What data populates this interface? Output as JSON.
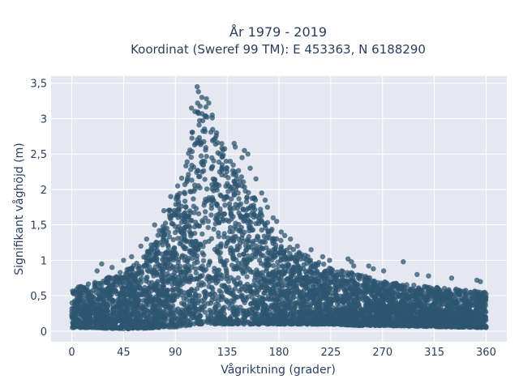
{
  "chart_data": {
    "type": "scatter",
    "title": "År 1979 - 2019",
    "subtitle": "Koordinat (Sweref 99 TM): E 453363, N 6188290",
    "xlabel": "Vågriktning (grader)",
    "ylabel": "Signifikant våghöjd (m)",
    "xlim": [
      -18,
      378
    ],
    "ylim": [
      -0.15,
      3.6
    ],
    "x_ticks": [
      0,
      45,
      90,
      135,
      180,
      225,
      270,
      315,
      360
    ],
    "x_tick_labels": [
      "0",
      "45",
      "90",
      "135",
      "180",
      "225",
      "270",
      "315",
      "360"
    ],
    "y_ticks": [
      0,
      0.5,
      1,
      1.5,
      2,
      2.5,
      3,
      3.5
    ],
    "y_tick_labels": [
      "0",
      "0,5",
      "1",
      "1,5",
      "2",
      "2,5",
      "3",
      "3,5"
    ],
    "grid": true,
    "legend": "none",
    "marker_color": "#2e5570",
    "plot_background": "#e5e8f0",
    "envelope": {
      "description_x": [
        0,
        10,
        20,
        30,
        45,
        60,
        75,
        90,
        100,
        110,
        120,
        135,
        150,
        165,
        180,
        200,
        225,
        250,
        270,
        300,
        330,
        360
      ],
      "upper": [
        0.6,
        0.65,
        0.7,
        0.75,
        0.85,
        1.0,
        1.4,
        1.9,
        2.4,
        3.3,
        3.1,
        2.5,
        2.2,
        1.7,
        1.3,
        1.1,
        0.9,
        0.8,
        0.7,
        0.65,
        0.6,
        0.55
      ],
      "lower": [
        0.05,
        0.05,
        0.05,
        0.04,
        0.03,
        0.04,
        0.05,
        0.06,
        0.08,
        0.1,
        0.1,
        0.1,
        0.1,
        0.1,
        0.1,
        0.1,
        0.1,
        0.08,
        0.08,
        0.07,
        0.06,
        0.05
      ]
    },
    "outliers": [
      {
        "x": 109,
        "y": 3.45
      },
      {
        "x": 110,
        "y": 3.38
      },
      {
        "x": 113,
        "y": 3.3
      },
      {
        "x": 117,
        "y": 3.28
      },
      {
        "x": 119,
        "y": 3.22
      },
      {
        "x": 104,
        "y": 3.15
      },
      {
        "x": 107,
        "y": 3.1
      },
      {
        "x": 122,
        "y": 3.05
      },
      {
        "x": 141,
        "y": 2.65
      },
      {
        "x": 142,
        "y": 2.6
      },
      {
        "x": 150,
        "y": 2.55
      },
      {
        "x": 153,
        "y": 2.5
      },
      {
        "x": 148,
        "y": 2.45
      },
      {
        "x": 155,
        "y": 2.3
      },
      {
        "x": 160,
        "y": 2.15
      },
      {
        "x": 165,
        "y": 1.95
      },
      {
        "x": 168,
        "y": 1.85
      },
      {
        "x": 170,
        "y": 1.75
      },
      {
        "x": 175,
        "y": 1.6
      },
      {
        "x": 178,
        "y": 1.55
      },
      {
        "x": 182,
        "y": 1.4
      },
      {
        "x": 185,
        "y": 1.35
      },
      {
        "x": 190,
        "y": 1.3
      },
      {
        "x": 196,
        "y": 1.2
      },
      {
        "x": 208,
        "y": 1.15
      },
      {
        "x": 218,
        "y": 1.05
      },
      {
        "x": 224,
        "y": 1.0
      },
      {
        "x": 240,
        "y": 1.02
      },
      {
        "x": 243,
        "y": 0.98
      },
      {
        "x": 245,
        "y": 0.92
      },
      {
        "x": 258,
        "y": 0.92
      },
      {
        "x": 262,
        "y": 0.88
      },
      {
        "x": 271,
        "y": 0.85
      },
      {
        "x": 288,
        "y": 0.98
      },
      {
        "x": 300,
        "y": 0.8
      },
      {
        "x": 310,
        "y": 0.78
      },
      {
        "x": 330,
        "y": 0.75
      },
      {
        "x": 352,
        "y": 0.72
      },
      {
        "x": 355,
        "y": 0.7
      },
      {
        "x": 22,
        "y": 0.85
      },
      {
        "x": 26,
        "y": 0.95
      },
      {
        "x": 35,
        "y": 0.9
      },
      {
        "x": 45,
        "y": 1.0
      },
      {
        "x": 52,
        "y": 1.05
      },
      {
        "x": 60,
        "y": 1.2
      },
      {
        "x": 65,
        "y": 1.3
      },
      {
        "x": 72,
        "y": 1.5
      },
      {
        "x": 80,
        "y": 1.7
      },
      {
        "x": 86,
        "y": 1.9
      },
      {
        "x": 92,
        "y": 2.05
      }
    ]
  }
}
